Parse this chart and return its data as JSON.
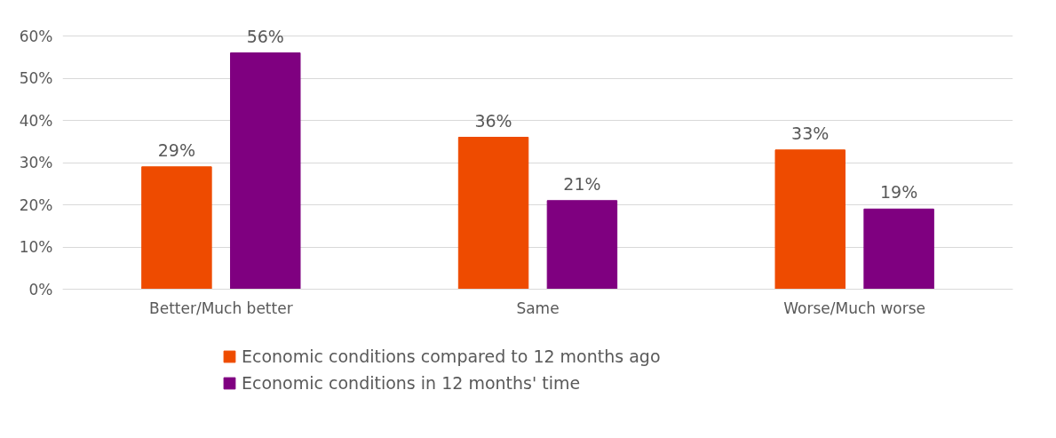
{
  "chart_data": {
    "type": "bar",
    "categories": [
      "Better/Much better",
      "Same",
      "Worse/Much worse"
    ],
    "series": [
      {
        "name": "Economic conditions compared to 12 months ago",
        "color": "#ee4b00",
        "values": [
          29,
          36,
          33
        ],
        "value_labels": [
          "29%",
          "36%",
          "33%"
        ]
      },
      {
        "name": "Economic conditions in 12 months' time",
        "color": "#7f0080",
        "values": [
          56,
          21,
          19
        ],
        "value_labels": [
          "56%",
          "21%",
          "19%"
        ]
      }
    ],
    "ylim": [
      0,
      60
    ],
    "yticks": [
      {
        "value": 0,
        "label": "0%"
      },
      {
        "value": 10,
        "label": "10%"
      },
      {
        "value": 20,
        "label": "20%"
      },
      {
        "value": 30,
        "label": "30%"
      },
      {
        "value": 40,
        "label": "40%"
      },
      {
        "value": 50,
        "label": "50%"
      },
      {
        "value": 60,
        "label": "60%"
      }
    ],
    "grid": "y",
    "legend": "bottom"
  }
}
